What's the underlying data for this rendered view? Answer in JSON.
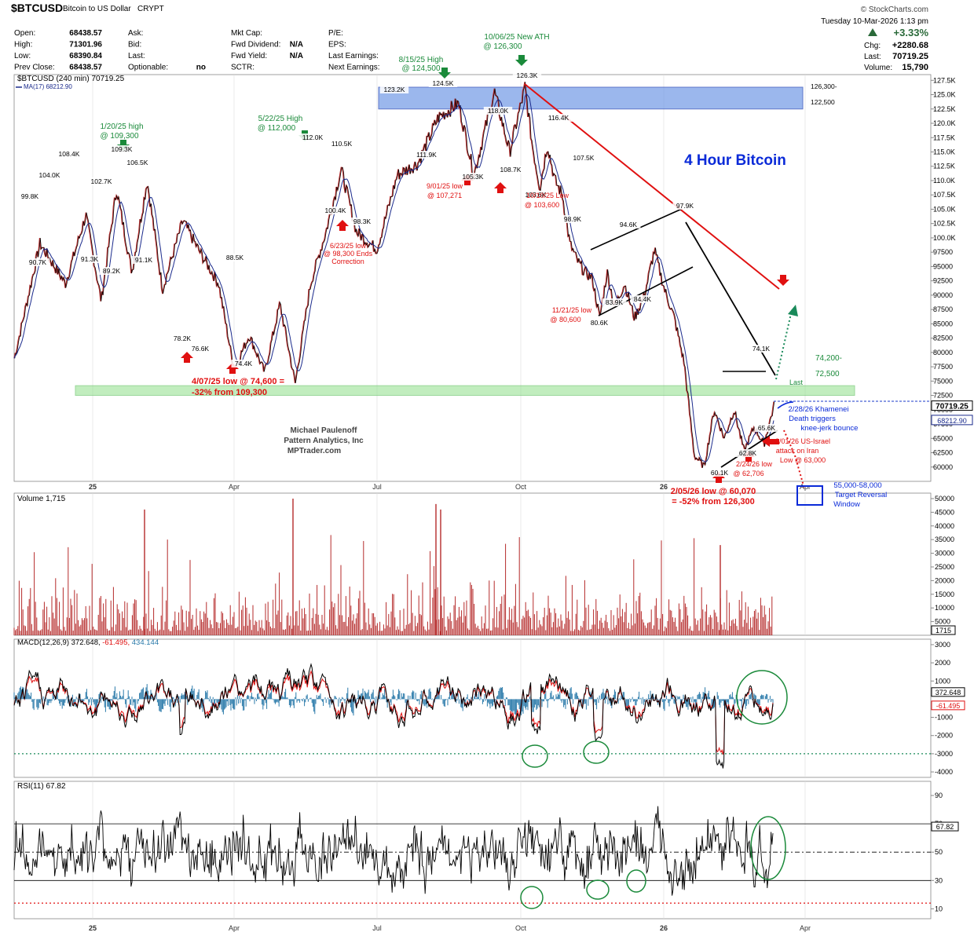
{
  "header": {
    "symbol": "$BTCUSD",
    "name": "Bitcoin to US Dollar",
    "exchange": "CRYPT",
    "brand": "© StockCharts.com",
    "datetime": "Tuesday  10-Mar-2026  1:13 pm",
    "pct_change": "+3.33%",
    "chg_label": "Chg:",
    "chg_value": "+2280.68",
    "last_label": "Last:",
    "last_value": "70719.25",
    "volume_label": "Volume:",
    "volume_value": "15,790",
    "quote": {
      "col1": [
        [
          "Open:",
          "68438.57"
        ],
        [
          "High:",
          "71301.96"
        ],
        [
          "Low:",
          "68390.84"
        ],
        [
          "Prev Close:",
          "68438.57"
        ]
      ],
      "col2": [
        [
          "Ask:",
          ""
        ],
        [
          "Bid:",
          ""
        ],
        [
          "Last:",
          ""
        ],
        [
          "Optionable:",
          "no"
        ]
      ],
      "col3": [
        [
          "Mkt Cap:",
          ""
        ],
        [
          "Fwd Dividend:",
          "N/A"
        ],
        [
          "Fwd Yield:",
          "N/A"
        ],
        [
          "SCTR:",
          ""
        ]
      ],
      "col4": [
        [
          "P/E:",
          ""
        ],
        [
          "EPS:",
          ""
        ],
        [
          "Last Earnings:",
          ""
        ],
        [
          "Next Earnings:",
          ""
        ]
      ]
    }
  },
  "chart_data": {
    "type": "line",
    "colors": {
      "price": "#000000",
      "ma": "#1a2a8c",
      "red": "#e01010",
      "green": "#1a8a3a",
      "blue": "#0a2ad8",
      "volume": "#b52a2a",
      "macd_hist": "#2a7aaa"
    },
    "price_panel": {
      "legend": [
        "$BTCUSD (240 min) 70719.25",
        "MA(17) 68212.90"
      ],
      "ylim": [
        57500,
        128500
      ],
      "ticks": [
        127500,
        125000,
        122500,
        120000,
        117500,
        115000,
        112500,
        110000,
        107500,
        105000,
        102500,
        100000,
        97500,
        95000,
        92500,
        90000,
        87500,
        85000,
        82500,
        80000,
        77500,
        75000,
        72500,
        70000,
        67500,
        65000,
        62500,
        60000
      ],
      "last_label": "70719.25",
      "ma_label": "68212.90",
      "path_x": [
        0,
        5,
        10,
        14,
        17,
        20,
        23,
        26,
        29,
        33,
        36,
        40,
        43,
        46,
        49,
        52,
        55,
        58,
        61,
        64,
        67,
        71,
        75,
        79,
        83,
        87,
        90,
        94,
        97,
        100
      ],
      "path_y": [
        79000,
        99000,
        92000,
        104000,
        89000,
        108500,
        94000,
        110000,
        91000,
        103000,
        98000,
        92000,
        77000,
        83000,
        76500,
        88500,
        74600,
        92000,
        101000,
        112000,
        101000,
        98000,
        111000,
        113000,
        121000,
        123500,
        111000,
        125500,
        115000,
        126300
      ],
      "path_x2": [
        0,
        3,
        6,
        9,
        12,
        15,
        18,
        21,
        24,
        27,
        30,
        33,
        36,
        40,
        44,
        48,
        52,
        56,
        60,
        64,
        68,
        72,
        76,
        80,
        84,
        88,
        92,
        96,
        100
      ],
      "path_y2": [
        126300,
        116000,
        108700,
        116400,
        110000,
        107500,
        99000,
        96000,
        94000,
        93000,
        86000,
        94000,
        88000,
        92000,
        86000,
        90000,
        97900,
        91000,
        86000,
        78000,
        62000,
        60070,
        70000,
        65000,
        70000,
        62706,
        67000,
        64000,
        70719
      ]
    },
    "annotations": [
      {
        "text": "1/20/25 high",
        "color": "green"
      },
      {
        "text": "@ 109,300",
        "color": "green"
      },
      {
        "text": "5/22/25 High",
        "color": "green"
      },
      {
        "text": "@ 112,000",
        "color": "green"
      },
      {
        "text": "8/15/25 High",
        "color": "green"
      },
      {
        "text": "@ 124,500",
        "color": "green"
      },
      {
        "text": "10/06/25 New ATH",
        "color": "green"
      },
      {
        "text": "@ 126,300",
        "color": "green"
      },
      {
        "text": "4 Hour Bitcoin",
        "color": "blue"
      },
      {
        "text": "6/23/25 low",
        "color": "red"
      },
      {
        "text": "@ 98,300 Ends",
        "color": "red"
      },
      {
        "text": "Correction",
        "color": "red"
      },
      {
        "text": "9/01/25 low",
        "color": "red"
      },
      {
        "text": "@ 107,271",
        "color": "red"
      },
      {
        "text": "10/10/25 Low",
        "color": "red"
      },
      {
        "text": "@ 103,600",
        "color": "red"
      },
      {
        "text": "11/21/25 low",
        "color": "red"
      },
      {
        "text": "@ 80,600",
        "color": "red"
      },
      {
        "text": "4/07/25 low @ 74,600 =",
        "color": "red"
      },
      {
        "text": "-32% from 109,300",
        "color": "red"
      },
      {
        "text": "2/05/26 low @ 60,070",
        "color": "red"
      },
      {
        "text": "= -52% from 126,300",
        "color": "red"
      },
      {
        "text": "2/24/26 low",
        "color": "red"
      },
      {
        "text": "@ 62,706",
        "color": "red"
      },
      {
        "text": "3/01/26 US-Israel",
        "color": "red"
      },
      {
        "text": "attack on Iran",
        "color": "red"
      },
      {
        "text": "Low @ 63,000",
        "color": "red"
      },
      {
        "text": "2/28/26 Khamenei",
        "color": "blue"
      },
      {
        "text": "Death triggers",
        "color": "blue"
      },
      {
        "text": "knee-jerk bounce",
        "color": "blue"
      },
      {
        "text": "55,000-58,000",
        "color": "blue"
      },
      {
        "text": "Target Reversal",
        "color": "blue"
      },
      {
        "text": "Window",
        "color": "blue"
      },
      {
        "text": "Michael Paulenoff",
        "color": "gray"
      },
      {
        "text": "Pattern Analytics, Inc",
        "color": "gray"
      },
      {
        "text": "MPTrader.com",
        "color": "gray"
      },
      {
        "text": "Last",
        "color": "green"
      },
      {
        "text": "126,300-",
        "color": "black"
      },
      {
        "text": "122,500",
        "color": "black"
      },
      {
        "text": "74,200-",
        "color": "green"
      },
      {
        "text": "72,500",
        "color": "green"
      }
    ],
    "price_labels": [
      "123.2K",
      "124.5K",
      "126.3K",
      "118.0K",
      "116.4K",
      "111.9K",
      "108.7K",
      "107.5K",
      "105.3K",
      "103.6K",
      "98.9K",
      "97.9K",
      "94.6K",
      "83.9K",
      "84.4K",
      "80.6K",
      "108.4K",
      "104.0K",
      "99.8K",
      "102.7K",
      "106.5K",
      "109.3K",
      "90.7K",
      "91.3K",
      "89.2K",
      "91.1K",
      "112.0K",
      "110.5K",
      "100.4K",
      "98.3K",
      "88.5K",
      "78.2K",
      "76.6K",
      "74.4K",
      "74.1K",
      "65.6K",
      "62.8K",
      "60.1K"
    ],
    "time_axis": [
      "25",
      "Apr",
      "Jul",
      "Oct",
      "26",
      "Apr"
    ],
    "volume_panel": {
      "legend": "Volume 1,715",
      "ylim": [
        0,
        52000
      ],
      "ticks": [
        50000,
        45000,
        40000,
        35000,
        30000,
        25000,
        20000,
        15000,
        10000,
        5000
      ],
      "last_label": "1715"
    },
    "macd_panel": {
      "legend": "MACD(12,26,9) 372.648, -61.495, 434.144",
      "legend_parts": [
        "MACD(12,26,9) 372.648,",
        "-61.495,",
        "434.144"
      ],
      "ylim": [
        -4300,
        3300
      ],
      "ticks": [
        3000,
        2000,
        1000,
        -1000,
        -2000,
        -3000,
        -4000
      ],
      "labels": [
        "372.648",
        "-61.495"
      ],
      "dotted_level": -3000
    },
    "rsi_panel": {
      "legend": "RSI(11) 67.82",
      "ylim": [
        3,
        100
      ],
      "ticks": [
        90,
        70,
        50,
        30,
        10
      ],
      "label": "67.82",
      "levels": [
        70,
        50,
        30
      ],
      "dotted_level": 14
    }
  }
}
